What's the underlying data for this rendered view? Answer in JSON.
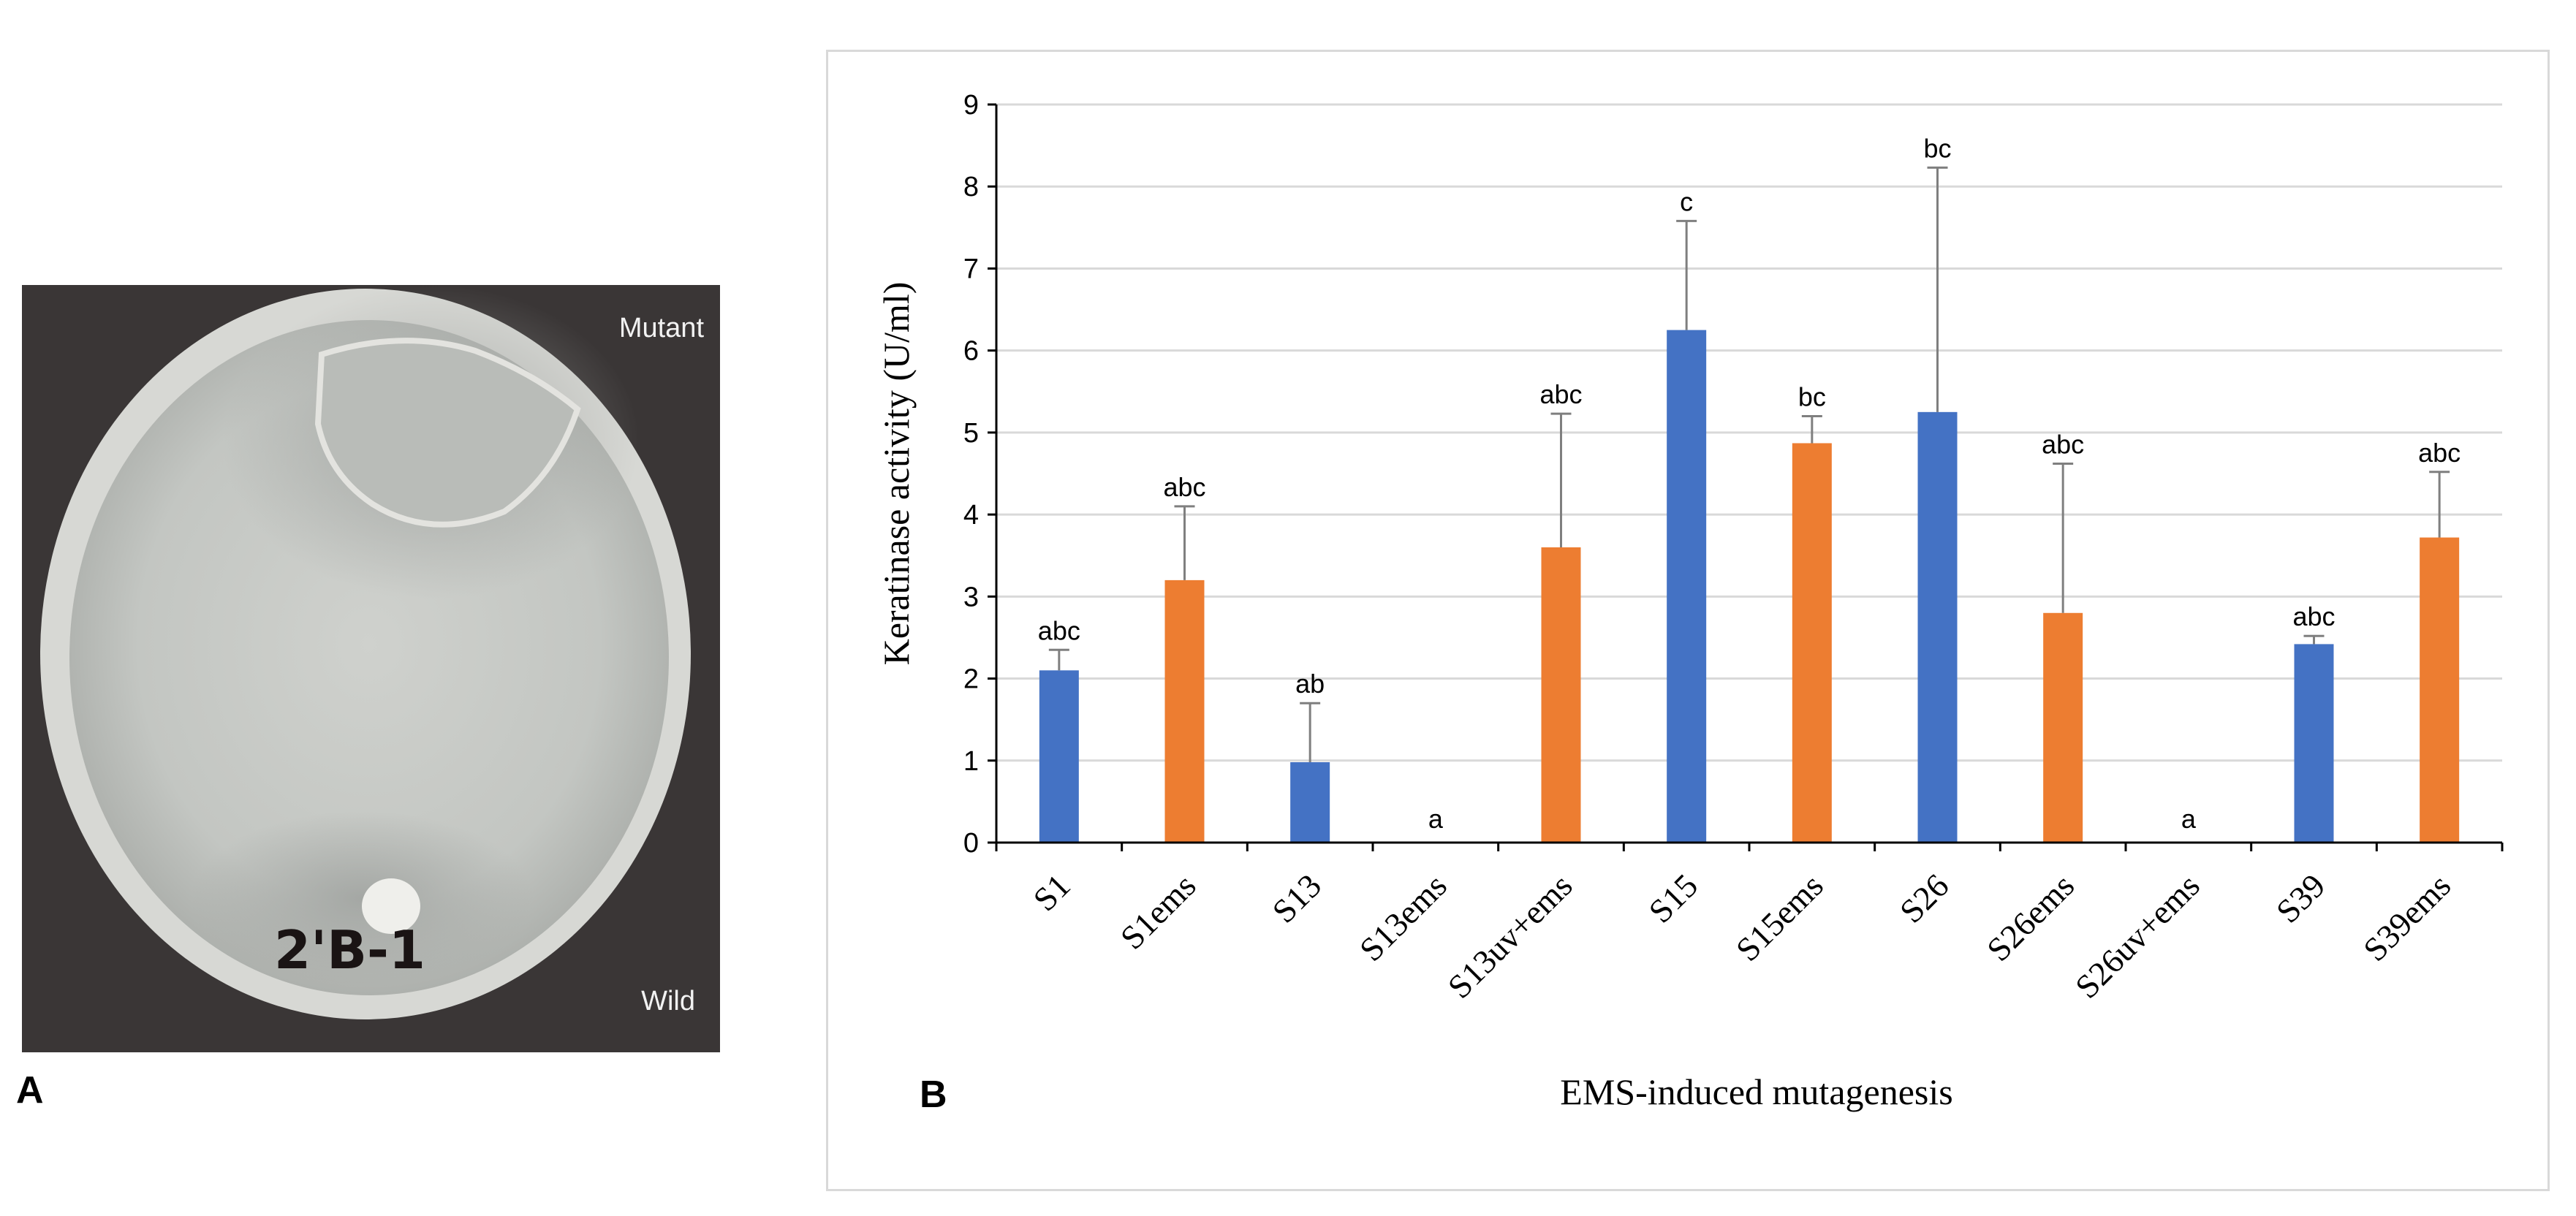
{
  "panel_a": {
    "letter": "A",
    "label_mutant": "Mutant",
    "label_wild": "Wild",
    "plate_marking": "2'B-1"
  },
  "panel_b": {
    "letter": "B"
  },
  "colors": {
    "blue": "#4472C4",
    "orange": "#ED7D31"
  },
  "chart_data": {
    "type": "bar",
    "title": "",
    "xlabel": "EMS-induced mutagenesis",
    "ylabel": "Keratinase activity (U/ml)",
    "ylim": [
      0,
      9
    ],
    "yticks": [
      "0",
      "1",
      "2",
      "3",
      "4",
      "5",
      "6",
      "7",
      "8",
      "9"
    ],
    "grid": true,
    "categories": [
      "S1",
      "S1ems",
      "S13",
      "S13ems",
      "S13uv+ems",
      "S15",
      "S15ems",
      "S26",
      "S26ems",
      "S26uv+ems",
      "S39",
      "S39ems"
    ],
    "values": [
      2.1,
      3.2,
      0.98,
      0,
      3.6,
      6.25,
      4.87,
      5.25,
      2.8,
      0,
      2.42,
      3.72
    ],
    "errors": [
      0.25,
      0.9,
      0.72,
      0,
      1.63,
      1.33,
      0.33,
      2.98,
      1.82,
      0,
      0.1,
      0.8
    ],
    "colors": [
      "blue",
      "orange",
      "blue",
      "orange",
      "orange",
      "blue",
      "orange",
      "blue",
      "orange",
      "orange",
      "blue",
      "orange"
    ],
    "significance": [
      "abc",
      "abc",
      "ab",
      "a",
      "abc",
      "c",
      "bc",
      "bc",
      "abc",
      "a",
      "abc",
      "abc"
    ]
  }
}
